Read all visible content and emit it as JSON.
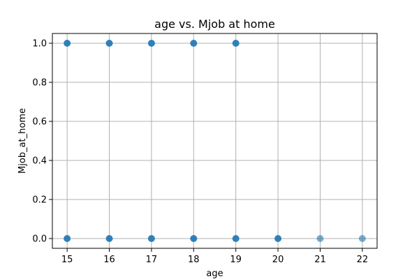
{
  "chart_data": {
    "type": "scatter",
    "title": "age vs. Mjob at home",
    "xlabel": "age",
    "ylabel": "Mjob_at_home",
    "xlim": [
      14.65,
      22.35
    ],
    "ylim": [
      -0.05,
      1.05
    ],
    "x_ticks": [
      15,
      16,
      17,
      18,
      19,
      20,
      21,
      22
    ],
    "y_ticks": [
      0.0,
      0.2,
      0.4,
      0.6,
      0.8,
      1.0
    ],
    "x_tick_labels": [
      "15",
      "16",
      "17",
      "18",
      "19",
      "20",
      "21",
      "22"
    ],
    "y_tick_labels": [
      "0.0",
      "0.2",
      "0.4",
      "0.6",
      "0.8",
      "1.0"
    ],
    "grid": true,
    "marker_color": "#1f77b4",
    "points": [
      {
        "x": 15,
        "y": 1
      },
      {
        "x": 16,
        "y": 1
      },
      {
        "x": 17,
        "y": 1
      },
      {
        "x": 18,
        "y": 1
      },
      {
        "x": 19,
        "y": 1
      },
      {
        "x": 15,
        "y": 0
      },
      {
        "x": 16,
        "y": 0
      },
      {
        "x": 17,
        "y": 0
      },
      {
        "x": 18,
        "y": 0
      },
      {
        "x": 19,
        "y": 0
      },
      {
        "x": 20,
        "y": 0
      },
      {
        "x": 21,
        "y": 0
      },
      {
        "x": 22,
        "y": 0
      }
    ]
  }
}
